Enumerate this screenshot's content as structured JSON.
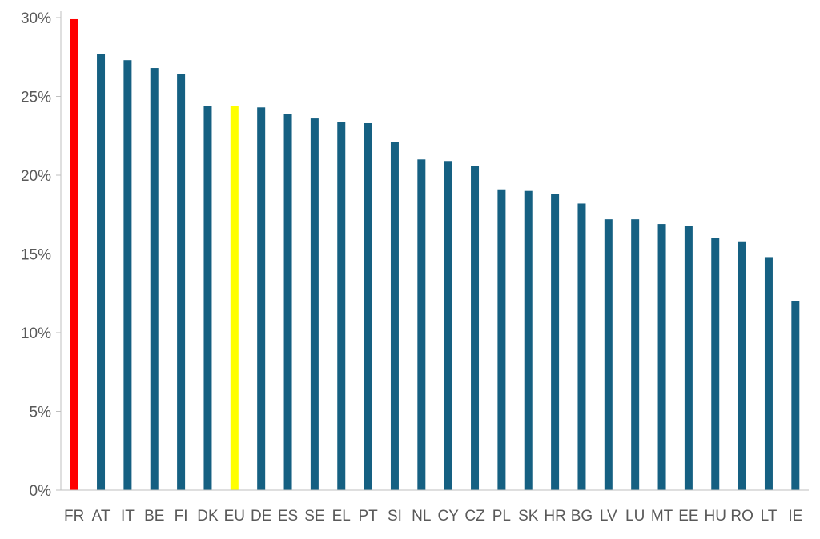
{
  "chart_data": {
    "type": "bar",
    "title": "",
    "xlabel": "",
    "ylabel": "",
    "ylim": [
      0,
      0.3
    ],
    "yticks": [
      {
        "value": 0,
        "label": "0%"
      },
      {
        "value": 0.05,
        "label": "5%"
      },
      {
        "value": 0.1,
        "label": "10%"
      },
      {
        "value": 0.15,
        "label": "15%"
      },
      {
        "value": 0.2,
        "label": "20%"
      },
      {
        "value": 0.25,
        "label": "25%"
      },
      {
        "value": 0.3,
        "label": "30%"
      }
    ],
    "grid": false,
    "legend": "none",
    "categories": [
      "FR",
      "AT",
      "IT",
      "BE",
      "FI",
      "DK",
      "EU",
      "DE",
      "ES",
      "SE",
      "EL",
      "PT",
      "SI",
      "NL",
      "CY",
      "CZ",
      "PL",
      "SK",
      "HR",
      "BG",
      "LV",
      "LU",
      "MT",
      "EE",
      "HU",
      "RO",
      "LT",
      "IE"
    ],
    "values": [
      0.299,
      0.277,
      0.273,
      0.268,
      0.264,
      0.244,
      0.244,
      0.243,
      0.239,
      0.236,
      0.234,
      0.233,
      0.221,
      0.21,
      0.209,
      0.206,
      0.191,
      0.19,
      0.188,
      0.182,
      0.172,
      0.172,
      0.169,
      0.168,
      0.16,
      0.158,
      0.148,
      0.12
    ],
    "colors": {
      "default": "#156082",
      "highlight_FR": "#FF0000",
      "highlight_EU": "#FFFF00",
      "axis": "#BFBFBF",
      "text": "#595959"
    },
    "highlights": {
      "FR": "#FF0000",
      "EU": "#FFFF00"
    }
  }
}
